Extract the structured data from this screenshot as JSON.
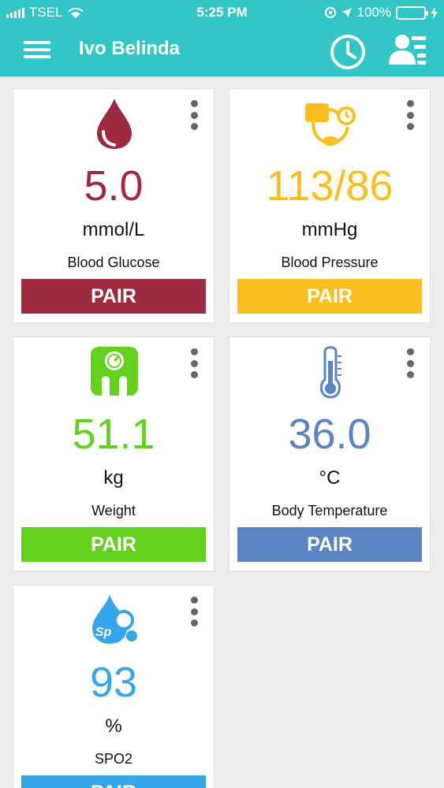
{
  "status_bar": {
    "carrier": "TSEL",
    "time": "5:25 PM",
    "battery": "100%"
  },
  "header": {
    "title": "Ivo Belinda"
  },
  "cards": [
    {
      "value": "5.0",
      "unit": "mmol/L",
      "label": "Blood Glucose",
      "button": "PAIR",
      "color": "#9e2a3f",
      "icon": "blood-drop-icon"
    },
    {
      "value": "113/86",
      "unit": "mmHg",
      "label": "Blood Pressure",
      "button": "PAIR",
      "color": "#f9bf1f",
      "icon": "blood-pressure-monitor-icon"
    },
    {
      "value": "51.1",
      "unit": "kg",
      "label": "Weight",
      "button": "PAIR",
      "color": "#63d11d",
      "icon": "weight-scale-icon"
    },
    {
      "value": "36.0",
      "unit": "°C",
      "label": "Body Temperature",
      "button": "PAIR",
      "color": "#5b84c4",
      "icon": "thermometer-icon"
    },
    {
      "value": "93",
      "unit": "%",
      "label": "SPO2",
      "button": "PAIR",
      "color": "#35a7e8",
      "icon": "spo2-drop-icon",
      "icon_text": "Sp"
    }
  ]
}
